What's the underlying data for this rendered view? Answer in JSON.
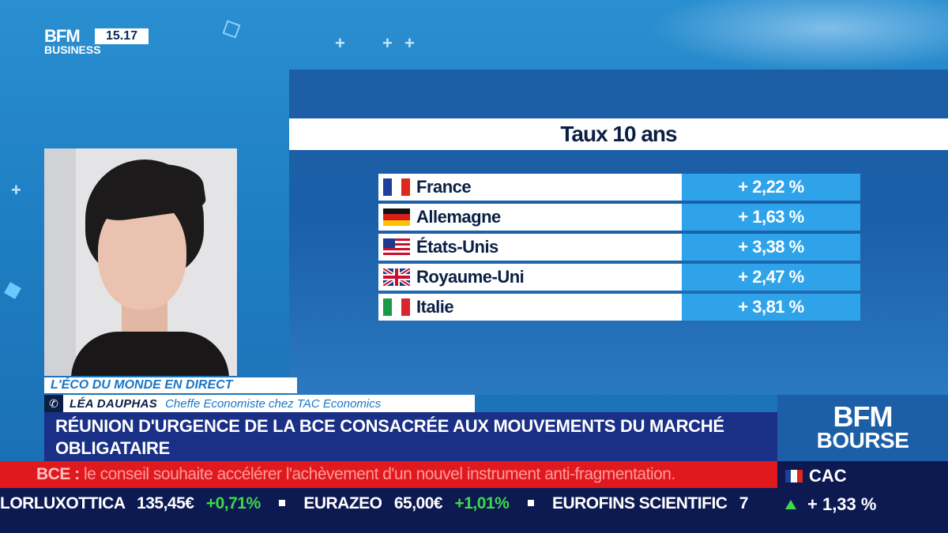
{
  "channel": {
    "logo_line1": "BFM",
    "logo_line2": "BUSINESS",
    "clock": "15.17"
  },
  "panel": {
    "title": "Taux 10 ans",
    "rates": [
      {
        "country": "France",
        "flag": "fr",
        "value": "+ 2,22 %"
      },
      {
        "country": "Allemagne",
        "flag": "de",
        "value": "+ 1,63 %"
      },
      {
        "country": "États-Unis",
        "flag": "us",
        "value": "+ 3,38 %"
      },
      {
        "country": "Royaume-Uni",
        "flag": "uk",
        "value": "+ 2,47 %"
      },
      {
        "country": "Italie",
        "flag": "it",
        "value": "+ 3,81 %"
      }
    ]
  },
  "lower_third": {
    "show": "L'ÉCO DU MONDE EN DIRECT",
    "guest_name": "LÉA DAUPHAS",
    "guest_role": "Cheffe Economiste chez TAC Economics",
    "headline": "RÉUNION D'URGENCE DE LA BCE CONSACRÉE AUX MOUVEMENTS DU MARCHÉ OBLIGATAIRE"
  },
  "news_crawl": {
    "prefix": "BCE :",
    "text": " le conseil souhaite accélérer l'achèvement d'un nouvel instrument anti-fragmentation."
  },
  "ticker": [
    {
      "name": "LORLUXOTTICA",
      "price": "135,45€",
      "change": "+0,71%"
    },
    {
      "name": "EURAZEO",
      "price": "65,00€",
      "change": "+1,01%"
    },
    {
      "name": "EUROFINS SCIENTIFIC",
      "price": "7",
      "change": ""
    }
  ],
  "bourse": {
    "line1": "BFM",
    "line2": "BOURSE",
    "index_name": "CAC",
    "index_change": "+ 1,33 %"
  },
  "colors": {
    "accent_blue": "#2ea3ea",
    "navy": "#0d1a52",
    "news_red": "#e0191f",
    "positive_green": "#3fd94a"
  }
}
